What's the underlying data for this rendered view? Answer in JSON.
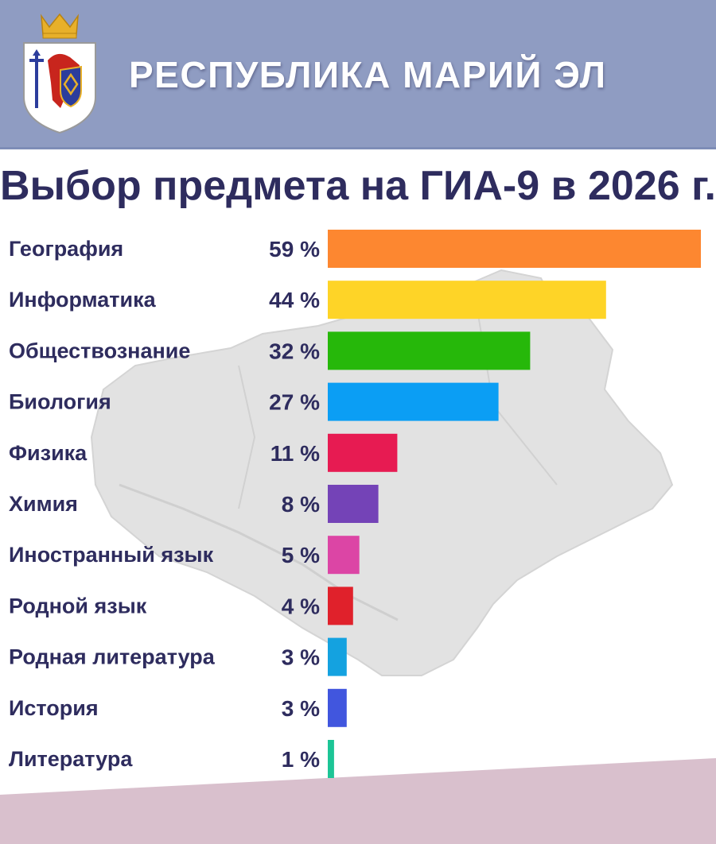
{
  "header": {
    "region_name": "РЕСПУБЛИКА МАРИЙ ЭЛ",
    "emblem_icon": "coat-of-arms-icon",
    "background_color": "#8f9cc2"
  },
  "map_background_icon": "region-map-icon",
  "chart_data": {
    "type": "bar",
    "orientation": "horizontal",
    "title": "Выбор предмета на ГИА-9 в 2026 г.",
    "xlabel": "",
    "ylabel": "",
    "xlim": [
      0,
      59
    ],
    "grid": false,
    "categories": [
      "География",
      "Информатика",
      "Обществознание",
      "Биология",
      "Физика",
      "Химия",
      "Иностранный язык",
      "Родной язык",
      "Родная литература",
      "История",
      "Литература"
    ],
    "values": [
      59,
      44,
      32,
      27,
      11,
      8,
      5,
      4,
      3,
      3,
      1
    ],
    "value_labels": [
      "59 %",
      "44 %",
      "32 %",
      "27 %",
      "11 %",
      "8 %",
      "5 %",
      "4 %",
      "3 %",
      "3 %",
      "1 %"
    ],
    "colors": [
      "#fd8730",
      "#fed427",
      "#26b80a",
      "#0b9ef4",
      "#e71b52",
      "#7443b7",
      "#dc45a5",
      "#e0212b",
      "#14a2e0",
      "#4156de",
      "#1cc596"
    ]
  }
}
